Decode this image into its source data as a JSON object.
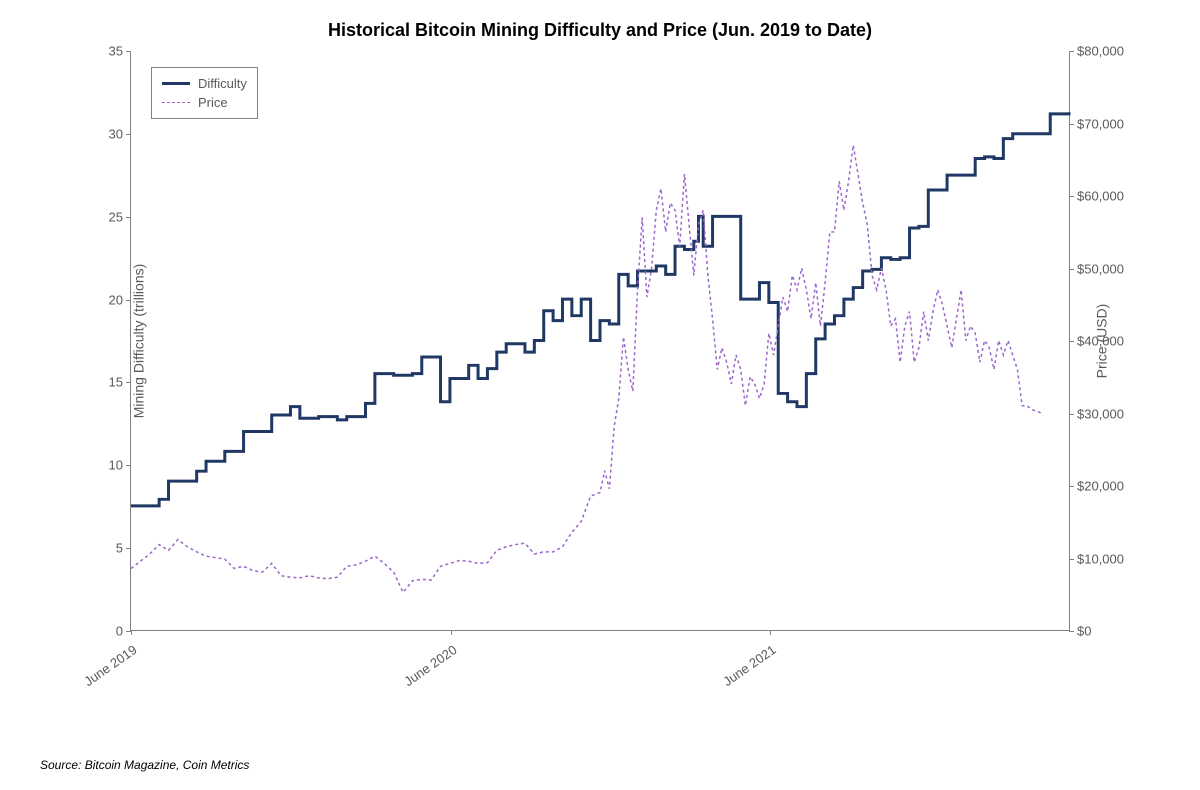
{
  "chart": {
    "type": "line-dual-axis",
    "title": "Historical Bitcoin Mining Difficulty and Price (Jun. 2019 to Date)",
    "title_fontsize": 18,
    "title_fontweight": "bold",
    "background_color": "#ffffff",
    "axis_color": "#7f7f7f",
    "tick_label_color": "#595959",
    "tick_fontsize": 13,
    "y_left": {
      "label": "Mining Difficulty (trillions)",
      "label_fontsize": 14,
      "min": 0,
      "max": 35,
      "tick_step": 5,
      "ticks": [
        0,
        5,
        10,
        15,
        20,
        25,
        30,
        35
      ]
    },
    "y_right": {
      "label": "Price (USD)",
      "label_fontsize": 14,
      "min": 0,
      "max": 80000,
      "tick_step": 10000,
      "ticks": [
        "$0",
        "$10,000",
        "$20,000",
        "$30,000",
        "$40,000",
        "$50,000",
        "$60,000",
        "$70,000",
        "$80,000"
      ]
    },
    "x": {
      "labels": [
        "June 2019",
        "June 2020",
        "June 2021"
      ],
      "positions": [
        0.0,
        0.34,
        0.68
      ],
      "rotation_deg": -35
    },
    "legend": {
      "position": "top-left",
      "border_color": "#808080",
      "items": [
        {
          "label": "Difficulty",
          "color": "#203864",
          "style": "solid",
          "width": 3
        },
        {
          "label": "Price",
          "color": "#9966cc",
          "style": "dashed",
          "width": 1.5
        }
      ]
    },
    "series": {
      "difficulty": {
        "axis": "left",
        "color": "#203864",
        "line_width": 3,
        "style": "step",
        "data": [
          [
            0.0,
            7.5
          ],
          [
            0.02,
            7.5
          ],
          [
            0.03,
            7.9
          ],
          [
            0.04,
            9.0
          ],
          [
            0.05,
            9.0
          ],
          [
            0.07,
            9.6
          ],
          [
            0.08,
            10.2
          ],
          [
            0.1,
            10.8
          ],
          [
            0.12,
            12.0
          ],
          [
            0.13,
            12.0
          ],
          [
            0.15,
            13.0
          ],
          [
            0.17,
            13.5
          ],
          [
            0.18,
            12.8
          ],
          [
            0.2,
            12.9
          ],
          [
            0.22,
            12.7
          ],
          [
            0.23,
            12.9
          ],
          [
            0.25,
            13.7
          ],
          [
            0.26,
            15.5
          ],
          [
            0.28,
            15.4
          ],
          [
            0.3,
            15.5
          ],
          [
            0.31,
            16.5
          ],
          [
            0.33,
            13.8
          ],
          [
            0.34,
            15.2
          ],
          [
            0.36,
            16.0
          ],
          [
            0.37,
            15.2
          ],
          [
            0.38,
            15.8
          ],
          [
            0.39,
            16.8
          ],
          [
            0.4,
            17.3
          ],
          [
            0.41,
            17.3
          ],
          [
            0.42,
            16.8
          ],
          [
            0.43,
            17.5
          ],
          [
            0.44,
            19.3
          ],
          [
            0.45,
            18.7
          ],
          [
            0.46,
            20.0
          ],
          [
            0.47,
            19.0
          ],
          [
            0.48,
            20.0
          ],
          [
            0.49,
            17.5
          ],
          [
            0.5,
            18.7
          ],
          [
            0.51,
            18.5
          ],
          [
            0.52,
            21.5
          ],
          [
            0.53,
            20.8
          ],
          [
            0.54,
            21.7
          ],
          [
            0.55,
            21.7
          ],
          [
            0.56,
            22.0
          ],
          [
            0.57,
            21.5
          ],
          [
            0.58,
            23.2
          ],
          [
            0.59,
            23.0
          ],
          [
            0.6,
            23.5
          ],
          [
            0.605,
            25.0
          ],
          [
            0.61,
            23.2
          ],
          [
            0.62,
            25.0
          ],
          [
            0.64,
            25.0
          ],
          [
            0.65,
            20.0
          ],
          [
            0.66,
            20.0
          ],
          [
            0.67,
            21.0
          ],
          [
            0.68,
            19.8
          ],
          [
            0.69,
            14.3
          ],
          [
            0.7,
            13.8
          ],
          [
            0.71,
            13.5
          ],
          [
            0.72,
            15.5
          ],
          [
            0.73,
            17.6
          ],
          [
            0.74,
            18.5
          ],
          [
            0.75,
            19.0
          ],
          [
            0.76,
            20.0
          ],
          [
            0.77,
            20.7
          ],
          [
            0.78,
            21.7
          ],
          [
            0.79,
            21.8
          ],
          [
            0.8,
            22.5
          ],
          [
            0.81,
            22.4
          ],
          [
            0.82,
            22.5
          ],
          [
            0.83,
            24.3
          ],
          [
            0.84,
            24.4
          ],
          [
            0.85,
            26.6
          ],
          [
            0.86,
            26.6
          ],
          [
            0.87,
            27.5
          ],
          [
            0.88,
            27.5
          ],
          [
            0.89,
            27.5
          ],
          [
            0.9,
            28.5
          ],
          [
            0.91,
            28.6
          ],
          [
            0.92,
            28.5
          ],
          [
            0.93,
            29.7
          ],
          [
            0.94,
            30.0
          ],
          [
            0.95,
            30.0
          ],
          [
            0.96,
            30.0
          ],
          [
            0.98,
            31.2
          ],
          [
            1.0,
            31.3
          ]
        ]
      },
      "price": {
        "axis": "right",
        "color": "#9966cc",
        "line_width": 1.5,
        "style": "dashed",
        "dash_pattern": "3,3",
        "data": [
          [
            0.0,
            8500
          ],
          [
            0.01,
            9500
          ],
          [
            0.02,
            10500
          ],
          [
            0.03,
            11800
          ],
          [
            0.04,
            11000
          ],
          [
            0.05,
            12500
          ],
          [
            0.06,
            11500
          ],
          [
            0.07,
            10800
          ],
          [
            0.08,
            10200
          ],
          [
            0.09,
            10000
          ],
          [
            0.1,
            9800
          ],
          [
            0.11,
            8500
          ],
          [
            0.12,
            8800
          ],
          [
            0.13,
            8200
          ],
          [
            0.14,
            8000
          ],
          [
            0.15,
            9200
          ],
          [
            0.16,
            7500
          ],
          [
            0.17,
            7300
          ],
          [
            0.18,
            7200
          ],
          [
            0.19,
            7500
          ],
          [
            0.2,
            7200
          ],
          [
            0.21,
            7100
          ],
          [
            0.22,
            7300
          ],
          [
            0.23,
            8800
          ],
          [
            0.24,
            9000
          ],
          [
            0.25,
            9500
          ],
          [
            0.26,
            10200
          ],
          [
            0.27,
            9200
          ],
          [
            0.28,
            8000
          ],
          [
            0.29,
            5200
          ],
          [
            0.3,
            6800
          ],
          [
            0.31,
            7000
          ],
          [
            0.32,
            6900
          ],
          [
            0.33,
            8800
          ],
          [
            0.34,
            9200
          ],
          [
            0.35,
            9600
          ],
          [
            0.36,
            9500
          ],
          [
            0.37,
            9200
          ],
          [
            0.38,
            9300
          ],
          [
            0.39,
            11000
          ],
          [
            0.4,
            11500
          ],
          [
            0.41,
            11800
          ],
          [
            0.42,
            12000
          ],
          [
            0.43,
            10500
          ],
          [
            0.44,
            10800
          ],
          [
            0.45,
            10800
          ],
          [
            0.46,
            11500
          ],
          [
            0.47,
            13500
          ],
          [
            0.48,
            15000
          ],
          [
            0.49,
            18500
          ],
          [
            0.5,
            19000
          ],
          [
            0.505,
            22000
          ],
          [
            0.51,
            19500
          ],
          [
            0.515,
            28000
          ],
          [
            0.52,
            32000
          ],
          [
            0.525,
            40500
          ],
          [
            0.53,
            36000
          ],
          [
            0.535,
            33000
          ],
          [
            0.54,
            47000
          ],
          [
            0.545,
            57000
          ],
          [
            0.55,
            46000
          ],
          [
            0.555,
            50000
          ],
          [
            0.56,
            58000
          ],
          [
            0.565,
            61000
          ],
          [
            0.57,
            55000
          ],
          [
            0.575,
            59000
          ],
          [
            0.58,
            58000
          ],
          [
            0.585,
            53000
          ],
          [
            0.59,
            63000
          ],
          [
            0.595,
            56000
          ],
          [
            0.6,
            49000
          ],
          [
            0.605,
            56000
          ],
          [
            0.61,
            58000
          ],
          [
            0.615,
            49000
          ],
          [
            0.62,
            43000
          ],
          [
            0.625,
            36000
          ],
          [
            0.63,
            39000
          ],
          [
            0.635,
            37000
          ],
          [
            0.64,
            34000
          ],
          [
            0.645,
            38000
          ],
          [
            0.65,
            36000
          ],
          [
            0.655,
            31000
          ],
          [
            0.66,
            35000
          ],
          [
            0.665,
            34000
          ],
          [
            0.67,
            32000
          ],
          [
            0.675,
            34000
          ],
          [
            0.68,
            41000
          ],
          [
            0.685,
            38000
          ],
          [
            0.69,
            42000
          ],
          [
            0.695,
            46000
          ],
          [
            0.7,
            44000
          ],
          [
            0.705,
            49000
          ],
          [
            0.71,
            47000
          ],
          [
            0.715,
            50000
          ],
          [
            0.72,
            47000
          ],
          [
            0.725,
            43000
          ],
          [
            0.73,
            48000
          ],
          [
            0.735,
            42000
          ],
          [
            0.74,
            48000
          ],
          [
            0.745,
            55000
          ],
          [
            0.75,
            55000
          ],
          [
            0.755,
            62000
          ],
          [
            0.76,
            58000
          ],
          [
            0.765,
            62000
          ],
          [
            0.77,
            67000
          ],
          [
            0.775,
            63000
          ],
          [
            0.78,
            59000
          ],
          [
            0.785,
            56000
          ],
          [
            0.79,
            49000
          ],
          [
            0.795,
            47000
          ],
          [
            0.8,
            50000
          ],
          [
            0.805,
            47000
          ],
          [
            0.81,
            42000
          ],
          [
            0.815,
            43000
          ],
          [
            0.82,
            37000
          ],
          [
            0.825,
            42000
          ],
          [
            0.83,
            44000
          ],
          [
            0.835,
            37000
          ],
          [
            0.84,
            39000
          ],
          [
            0.845,
            44000
          ],
          [
            0.85,
            40000
          ],
          [
            0.855,
            44000
          ],
          [
            0.86,
            47000
          ],
          [
            0.865,
            45000
          ],
          [
            0.87,
            42000
          ],
          [
            0.875,
            39000
          ],
          [
            0.88,
            43000
          ],
          [
            0.885,
            47000
          ],
          [
            0.89,
            40000
          ],
          [
            0.895,
            42000
          ],
          [
            0.9,
            41000
          ],
          [
            0.905,
            37000
          ],
          [
            0.91,
            40000
          ],
          [
            0.915,
            39000
          ],
          [
            0.92,
            36000
          ],
          [
            0.925,
            40000
          ],
          [
            0.93,
            38000
          ],
          [
            0.935,
            40000
          ],
          [
            0.94,
            38000
          ],
          [
            0.945,
            36000
          ],
          [
            0.95,
            31000
          ],
          [
            0.955,
            31000
          ],
          [
            0.96,
            30500
          ],
          [
            0.97,
            30000
          ]
        ]
      }
    },
    "source": "Source: Bitcoin Magazine, Coin Metrics",
    "source_fontsize": 12,
    "source_fontstyle": "italic"
  }
}
